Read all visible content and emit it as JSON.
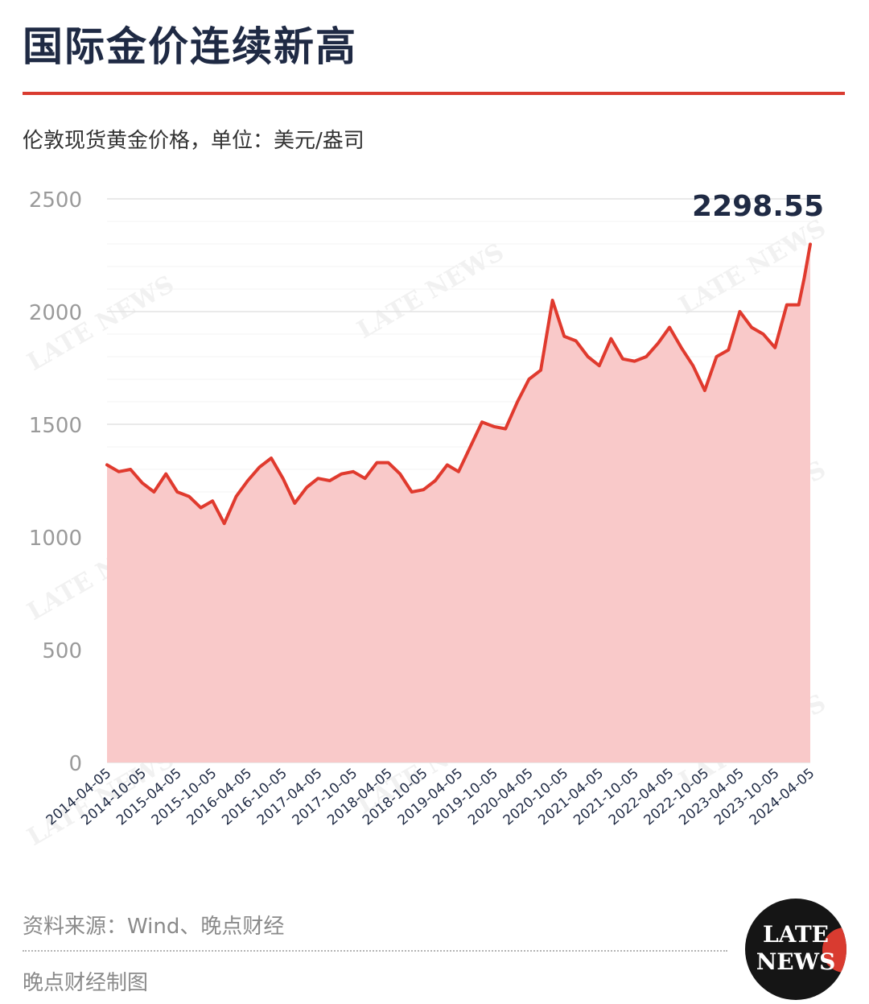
{
  "header": {
    "title": "国际金价连续新高",
    "subtitle": "伦敦现货黄金价格，单位：美元/盎司"
  },
  "footer": {
    "source": "资料来源：Wind、晚点财经",
    "credit": "晚点财经制图"
  },
  "logo": {
    "line1": "LATE",
    "line2": "NEWS"
  },
  "watermark": "LATE NEWS",
  "colors": {
    "line": "#e03a2e",
    "fill": "#f9c9c9",
    "title": "#1f2a44",
    "rule": "#d93b30"
  },
  "chart_data": {
    "type": "area",
    "ylim": [
      0,
      2500
    ],
    "yticks": [
      0,
      500,
      1000,
      1500,
      2000,
      2500
    ],
    "xticks": [
      "2014-04-05",
      "2014-10-05",
      "2015-04-05",
      "2015-10-05",
      "2016-04-05",
      "2016-10-05",
      "2017-04-05",
      "2017-10-05",
      "2018-04-05",
      "2018-10-05",
      "2019-04-05",
      "2019-10-05",
      "2020-04-05",
      "2020-10-05",
      "2021-04-05",
      "2021-10-05",
      "2022-04-05",
      "2022-10-05",
      "2023-04-05",
      "2023-10-05",
      "2024-04-05"
    ],
    "grid": true,
    "legend": "none",
    "x": [
      "2014-04",
      "2014-06",
      "2014-08",
      "2014-10",
      "2014-12",
      "2015-02",
      "2015-04",
      "2015-06",
      "2015-08",
      "2015-10",
      "2015-12",
      "2016-02",
      "2016-04",
      "2016-06",
      "2016-08",
      "2016-10",
      "2016-12",
      "2017-02",
      "2017-04",
      "2017-06",
      "2017-08",
      "2017-10",
      "2017-12",
      "2018-02",
      "2018-04",
      "2018-06",
      "2018-08",
      "2018-10",
      "2018-12",
      "2019-02",
      "2019-04",
      "2019-06",
      "2019-08",
      "2019-10",
      "2019-12",
      "2020-02",
      "2020-04",
      "2020-06",
      "2020-08",
      "2020-10",
      "2020-12",
      "2021-02",
      "2021-04",
      "2021-06",
      "2021-08",
      "2021-10",
      "2021-12",
      "2022-02",
      "2022-04",
      "2022-06",
      "2022-08",
      "2022-10",
      "2022-12",
      "2023-02",
      "2023-04",
      "2023-06",
      "2023-08",
      "2023-10",
      "2023-12",
      "2024-02",
      "2024-03",
      "2024-04"
    ],
    "values": [
      1320,
      1290,
      1300,
      1240,
      1200,
      1280,
      1200,
      1180,
      1130,
      1160,
      1060,
      1180,
      1250,
      1310,
      1350,
      1260,
      1150,
      1220,
      1260,
      1250,
      1280,
      1290,
      1260,
      1330,
      1330,
      1280,
      1200,
      1210,
      1250,
      1320,
      1290,
      1400,
      1510,
      1490,
      1480,
      1600,
      1700,
      1740,
      2050,
      1890,
      1870,
      1800,
      1760,
      1880,
      1790,
      1780,
      1800,
      1860,
      1930,
      1840,
      1760,
      1650,
      1800,
      1830,
      2000,
      1930,
      1900,
      1840,
      2030,
      2030,
      2150,
      2298.55
    ],
    "last_value_label": "2298.55"
  }
}
